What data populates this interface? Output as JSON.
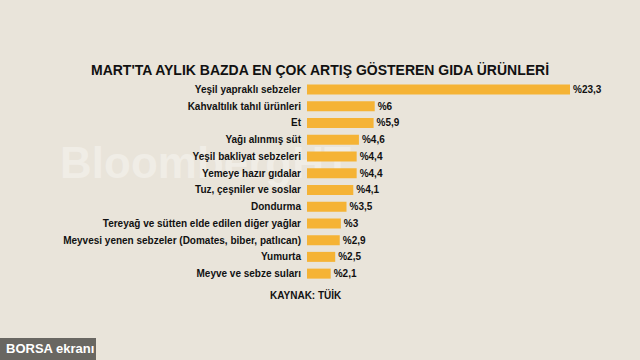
{
  "chart_data": {
    "type": "bar",
    "orientation": "horizontal",
    "title": "MART'TA AYLIK BAZDA EN ÇOK ARTIŞ GÖSTEREN GIDA ÜRÜNLERİ",
    "annotations": [
      "KAYNAK: TÜİK",
      "BORSA ekranı",
      "BloombergHT"
    ],
    "categories": [
      "Yeşil yapraklı sebzeler",
      "Kahvaltılık tahıl ürünleri",
      "Et",
      "Yağı alınmış süt",
      "Yeşil bakliyat sebzeleri",
      "Yemeye hazır gıdalar",
      "Tuz, çeşniler ve soslar",
      "Dondurma",
      "Tereyağ ve sütten elde edilen diğer yağlar",
      "Meyvesi yenen sebzeler (Domates, biber, patlıcan)",
      "Yumurta",
      "Meyve ve sebze suları"
    ],
    "values": [
      23.3,
      6,
      5.9,
      4.6,
      4.4,
      4.4,
      4.1,
      3.5,
      3,
      2.9,
      2.5,
      2.1
    ],
    "value_labels": [
      "%23,3",
      "%6",
      "%5,9",
      "%4,6",
      "%4,4",
      "%4,4",
      "%4,1",
      "%3,5",
      "%3",
      "%2,9",
      "%2,5",
      "%2,1"
    ],
    "color": "#f5b335",
    "data_labels": true,
    "tick_labels": "y",
    "grid": false
  }
}
